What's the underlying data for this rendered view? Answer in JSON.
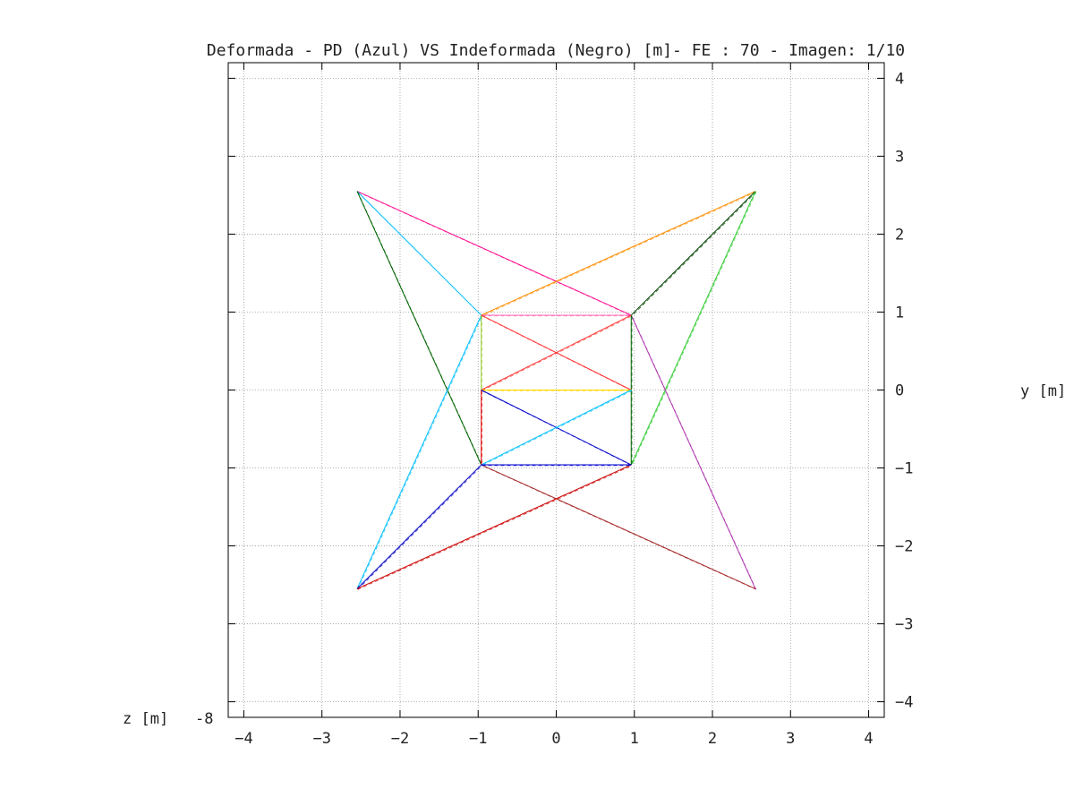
{
  "chart_data": {
    "type": "line",
    "title": "Deformada - PD (Azul) VS Indeformada (Negro) [m]- FE : 70  - Imagen: 1/10",
    "xlabel": "",
    "ylabel": "y [m]",
    "zlabel": "z [m]",
    "zlabel_ticks": "-8",
    "xlim": [
      -4.2,
      4.2
    ],
    "ylim": [
      -4.2,
      4.2
    ],
    "xticks": [
      "-4",
      "-3",
      "-2",
      "-1",
      "0",
      "1",
      "2",
      "3",
      "4"
    ],
    "yticks": [
      "4",
      "3",
      "2",
      "1",
      "0",
      "-1",
      "-2",
      "-3",
      "-4"
    ],
    "grid": true,
    "y_axis_side": "right",
    "members": [
      {
        "from": [
          -2.55,
          2.55
        ],
        "to": [
          0.96,
          0.96
        ],
        "color": "#ff1493"
      },
      {
        "from": [
          -2.55,
          2.55
        ],
        "to": [
          -0.96,
          0.96
        ],
        "color": "#00bfff"
      },
      {
        "from": [
          -2.55,
          2.55
        ],
        "to": [
          -0.96,
          -0.96
        ],
        "color": "#006400"
      },
      {
        "from": [
          2.55,
          2.55
        ],
        "to": [
          -0.96,
          0.96
        ],
        "color": "#ff8c00"
      },
      {
        "from": [
          2.55,
          2.55
        ],
        "to": [
          0.96,
          0.96
        ],
        "color": "#004400"
      },
      {
        "from": [
          2.55,
          2.55
        ],
        "to": [
          0.96,
          -0.96
        ],
        "color": "#32cd32"
      },
      {
        "from": [
          2.55,
          -2.55
        ],
        "to": [
          0.96,
          0.96
        ],
        "color": "#b03ab0"
      },
      {
        "from": [
          2.55,
          -2.55
        ],
        "to": [
          -0.96,
          -0.96
        ],
        "color": "#a52a2a"
      },
      {
        "from": [
          -2.55,
          -2.55
        ],
        "to": [
          -0.96,
          0.96
        ],
        "color": "#00bfff"
      },
      {
        "from": [
          -2.55,
          -2.55
        ],
        "to": [
          -0.96,
          -0.96
        ],
        "color": "#0000cd"
      },
      {
        "from": [
          -2.55,
          -2.55
        ],
        "to": [
          0.96,
          -0.96
        ],
        "color": "#cc0000"
      },
      {
        "from": [
          -0.96,
          0.96
        ],
        "to": [
          0.96,
          0.96
        ],
        "color": "#ff69b4"
      },
      {
        "from": [
          -0.96,
          0.96
        ],
        "to": [
          -0.96,
          0.0
        ],
        "color": "#9acd32"
      },
      {
        "from": [
          0.96,
          0.96
        ],
        "to": [
          0.96,
          -0.96
        ],
        "color": "#006400"
      },
      {
        "from": [
          -0.96,
          0.96
        ],
        "to": [
          0.96,
          0.0
        ],
        "color": "#ff3333"
      },
      {
        "from": [
          -0.96,
          0.0
        ],
        "to": [
          0.96,
          0.96
        ],
        "color": "#ff3333"
      },
      {
        "from": [
          -0.96,
          0.0
        ],
        "to": [
          0.96,
          0.0
        ],
        "color": "#ffd700"
      },
      {
        "from": [
          -0.96,
          0.0
        ],
        "to": [
          -0.96,
          -0.96
        ],
        "color": "#dd0000"
      },
      {
        "from": [
          -0.96,
          0.0
        ],
        "to": [
          0.96,
          -0.96
        ],
        "color": "#0000cd"
      },
      {
        "from": [
          0.96,
          0.0
        ],
        "to": [
          -0.96,
          -0.96
        ],
        "color": "#00bfff"
      },
      {
        "from": [
          -0.96,
          -0.96
        ],
        "to": [
          0.96,
          -0.96
        ],
        "color": "#0000cd"
      }
    ]
  }
}
